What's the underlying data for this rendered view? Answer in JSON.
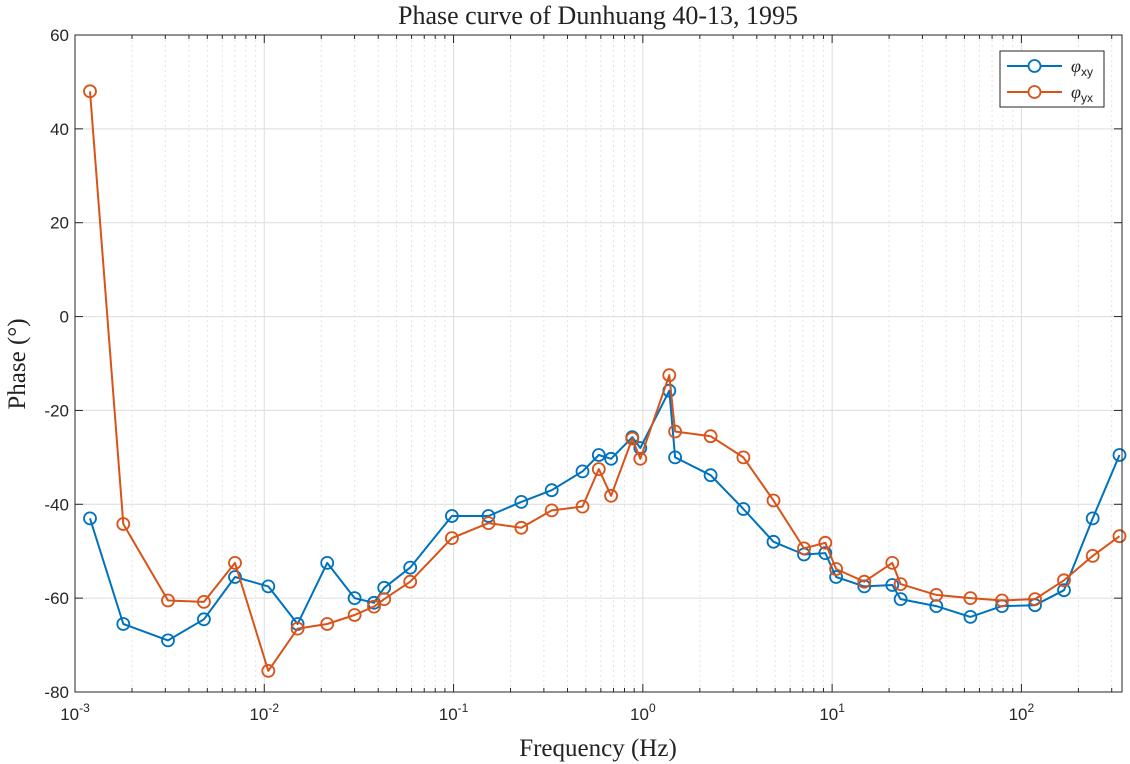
{
  "chart_data": {
    "type": "line",
    "title": "Phase curve of Dunhuang 40-13, 1995",
    "xlabel": "Frequency (Hz)",
    "ylabel": "Phase  (°)",
    "xscale": "log",
    "xlim": [
      0.001,
      340
    ],
    "ylim": [
      -80,
      60
    ],
    "yticks": [
      -80,
      -60,
      -40,
      -20,
      0,
      20,
      40,
      60
    ],
    "xticks": [
      {
        "value": 0.001,
        "base": "10",
        "exp": "-3"
      },
      {
        "value": 0.01,
        "base": "10",
        "exp": "-2"
      },
      {
        "value": 0.1,
        "base": "10",
        "exp": "-1"
      },
      {
        "value": 1,
        "base": "10",
        "exp": "0"
      },
      {
        "value": 10,
        "base": "10",
        "exp": "1"
      },
      {
        "value": 100,
        "base": "10",
        "exp": "2"
      }
    ],
    "grid": true,
    "legend_position": "top-right",
    "series": [
      {
        "name_symbol": "φ",
        "name_sub": "xy",
        "color": "#0072BD",
        "x": [
          0.0012,
          0.0018,
          0.0031,
          0.0048,
          0.007,
          0.0105,
          0.015,
          0.0215,
          0.03,
          0.038,
          0.043,
          0.059,
          0.098,
          0.153,
          0.228,
          0.33,
          0.48,
          0.585,
          0.68,
          0.88,
          0.97,
          1.38,
          1.48,
          2.28,
          3.4,
          4.9,
          7.1,
          9.2,
          10.5,
          14.8,
          20.8,
          23.0,
          35.5,
          53.8,
          79.0,
          118.0,
          168.0,
          238.0,
          330.0
        ],
        "y": [
          -43.0,
          -65.5,
          -69.0,
          -64.5,
          -55.5,
          -57.5,
          -65.5,
          -52.5,
          -60.0,
          -61.0,
          -57.8,
          -53.5,
          -42.5,
          -42.5,
          -39.5,
          -37.0,
          -33.0,
          -29.5,
          -30.3,
          -25.7,
          -28.0,
          -15.8,
          -30.0,
          -33.8,
          -41.0,
          -48.0,
          -50.7,
          -50.4,
          -55.5,
          -57.5,
          -57.2,
          -60.2,
          -61.7,
          -64.0,
          -61.7,
          -61.5,
          -58.3,
          -43.0,
          -29.5
        ]
      },
      {
        "name_symbol": "φ",
        "name_sub": "yx",
        "color": "#D95319",
        "x": [
          0.0012,
          0.0018,
          0.0031,
          0.0048,
          0.007,
          0.0105,
          0.015,
          0.0215,
          0.03,
          0.038,
          0.043,
          0.059,
          0.098,
          0.153,
          0.228,
          0.33,
          0.48,
          0.585,
          0.68,
          0.88,
          0.97,
          1.38,
          1.48,
          2.28,
          3.4,
          4.9,
          7.1,
          9.2,
          10.5,
          14.8,
          20.8,
          23.0,
          35.5,
          53.8,
          79.0,
          118.0,
          168.0,
          238.0,
          330.0
        ],
        "y": [
          48.0,
          -44.2,
          -60.5,
          -60.8,
          -52.5,
          -75.5,
          -66.5,
          -65.5,
          -63.6,
          -61.8,
          -60.2,
          -56.5,
          -47.2,
          -44.0,
          -45.0,
          -41.3,
          -40.5,
          -32.5,
          -38.2,
          -26.0,
          -30.3,
          -12.5,
          -24.5,
          -25.5,
          -30.0,
          -39.2,
          -49.4,
          -48.2,
          -53.8,
          -56.5,
          -52.5,
          -57.0,
          -59.3,
          -60.0,
          -60.5,
          -60.2,
          -56.2,
          -51.0,
          -46.8
        ]
      }
    ]
  }
}
